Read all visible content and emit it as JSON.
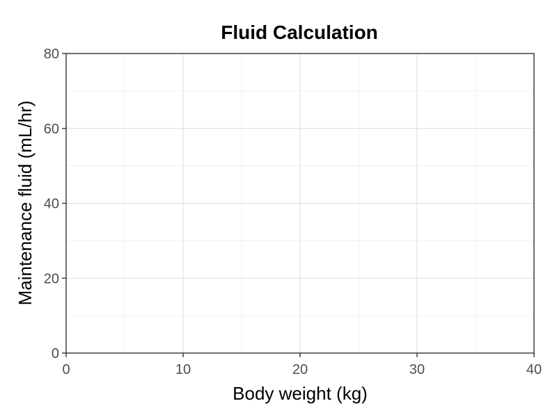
{
  "chart_data": {
    "type": "line",
    "title": "Fluid Calculation",
    "xlabel": "Body weight (kg)",
    "ylabel": "Maintenance fluid (mL/hr)",
    "xlim": [
      0,
      40
    ],
    "ylim": [
      0,
      80
    ],
    "x_ticks": [
      0,
      10,
      20,
      30,
      40
    ],
    "y_ticks": [
      0,
      20,
      40,
      60,
      80
    ],
    "grid": true,
    "legend": "none",
    "series": []
  }
}
